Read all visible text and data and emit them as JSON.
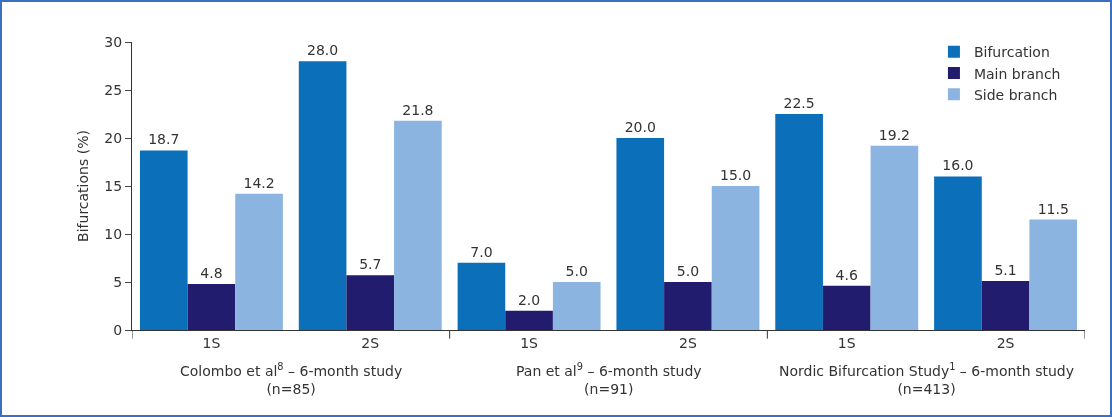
{
  "chart_data": {
    "type": "bar",
    "ylabel": "Bifurcations (%)",
    "categories": [
      "1S",
      "2S",
      "1S",
      "2S",
      "1S",
      "2S"
    ],
    "series": [
      {
        "name": "Bifurcation",
        "color": "#0b6fba",
        "values": [
          18.7,
          28.0,
          7.0,
          20.0,
          22.5,
          16.0
        ],
        "value_labels": [
          "18.7",
          "28.0",
          "7.0",
          "20.0",
          "22.5",
          "16.0"
        ]
      },
      {
        "name": "Main branch",
        "color": "#211c6e",
        "values": [
          4.8,
          5.7,
          2.0,
          5.0,
          4.6,
          5.1
        ],
        "value_labels": [
          "4.8",
          "5.7",
          "2.0",
          "5.0",
          "4.6",
          "5.1"
        ]
      },
      {
        "name": "Side branch",
        "color": "#8bb5e0",
        "values": [
          14.2,
          21.8,
          5.0,
          15.0,
          19.2,
          11.5
        ],
        "value_labels": [
          "14.2",
          "21.8",
          "5.0",
          "15.0",
          "19.2",
          "11.5"
        ]
      }
    ],
    "annotations": [
      "Colombo et al$^{8}$ – 6-month study\n(n=85)",
      "Pan et al$^{9}$ – 6-month study\n(n=91)",
      "Nordic Bifurcation Study$^{1}$ – 6-month study\n(n=413)"
    ],
    "ylim": [
      0,
      30
    ],
    "yticks": [
      0,
      5,
      10,
      15,
      20,
      25,
      30
    ],
    "grid": false,
    "legend": "top right"
  }
}
